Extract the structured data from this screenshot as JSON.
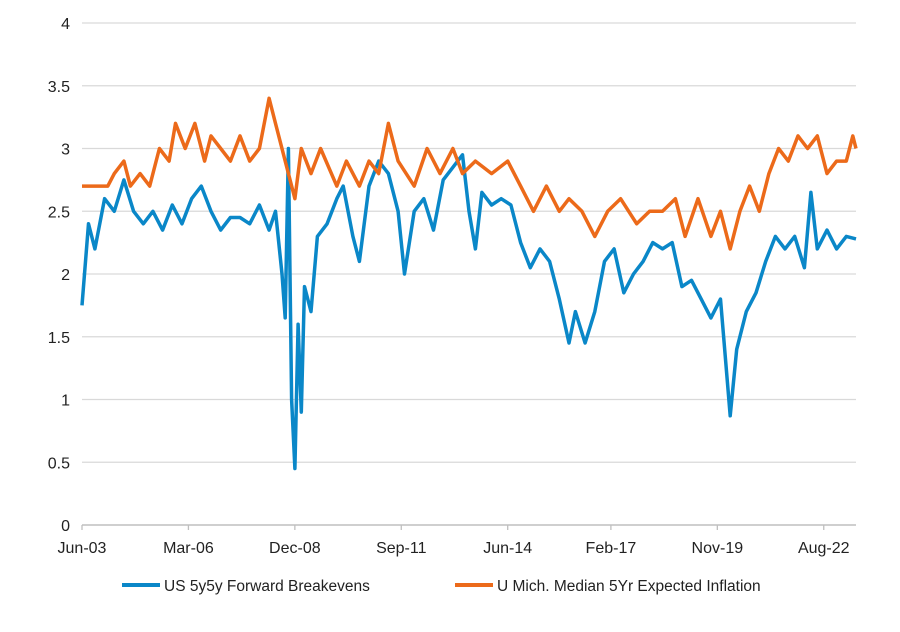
{
  "chart_data": {
    "type": "line",
    "title": "",
    "xlabel": "",
    "ylabel": "",
    "ylim": [
      0,
      4
    ],
    "yticks": [
      "0",
      "0.5",
      "1",
      "1.5",
      "2",
      "2.5",
      "3",
      "3.5",
      "4"
    ],
    "xlim": [
      "2003-06",
      "2023-06"
    ],
    "xticks": [
      {
        "label": "Jun-03",
        "date": "2003-06"
      },
      {
        "label": "Mar-06",
        "date": "2006-03"
      },
      {
        "label": "Dec-08",
        "date": "2008-12"
      },
      {
        "label": "Sep-11",
        "date": "2011-09"
      },
      {
        "label": "Jun-14",
        "date": "2014-06"
      },
      {
        "label": "Feb-17",
        "date": "2017-02"
      },
      {
        "label": "Nov-19",
        "date": "2019-11"
      },
      {
        "label": "Aug-22",
        "date": "2022-08"
      }
    ],
    "grid": true,
    "legend_placement": "bottom",
    "series": [
      {
        "name": "US 5y5y Forward Breakevens",
        "color": "#0a87c8",
        "points": [
          [
            "2003-06",
            1.75
          ],
          [
            "2003-08",
            2.4
          ],
          [
            "2003-10",
            2.2
          ],
          [
            "2004-01",
            2.6
          ],
          [
            "2004-04",
            2.5
          ],
          [
            "2004-07",
            2.75
          ],
          [
            "2004-10",
            2.5
          ],
          [
            "2005-01",
            2.4
          ],
          [
            "2005-04",
            2.5
          ],
          [
            "2005-07",
            2.35
          ],
          [
            "2005-10",
            2.55
          ],
          [
            "2006-01",
            2.4
          ],
          [
            "2006-04",
            2.6
          ],
          [
            "2006-07",
            2.7
          ],
          [
            "2006-10",
            2.5
          ],
          [
            "2007-01",
            2.35
          ],
          [
            "2007-04",
            2.45
          ],
          [
            "2007-07",
            2.45
          ],
          [
            "2007-10",
            2.4
          ],
          [
            "2008-01",
            2.55
          ],
          [
            "2008-04",
            2.35
          ],
          [
            "2008-06",
            2.5
          ],
          [
            "2008-08",
            2.0
          ],
          [
            "2008-09",
            1.65
          ],
          [
            "2008-10",
            3.0
          ],
          [
            "2008-11",
            1.0
          ],
          [
            "2008-12",
            0.45
          ],
          [
            "2009-01",
            1.6
          ],
          [
            "2009-02",
            0.9
          ],
          [
            "2009-03",
            1.9
          ],
          [
            "2009-05",
            1.7
          ],
          [
            "2009-07",
            2.3
          ],
          [
            "2009-10",
            2.4
          ],
          [
            "2010-01",
            2.6
          ],
          [
            "2010-03",
            2.7
          ],
          [
            "2010-06",
            2.3
          ],
          [
            "2010-08",
            2.1
          ],
          [
            "2010-11",
            2.7
          ],
          [
            "2011-02",
            2.9
          ],
          [
            "2011-05",
            2.8
          ],
          [
            "2011-08",
            2.5
          ],
          [
            "2011-10",
            2.0
          ],
          [
            "2012-01",
            2.5
          ],
          [
            "2012-04",
            2.6
          ],
          [
            "2012-07",
            2.35
          ],
          [
            "2012-10",
            2.75
          ],
          [
            "2013-01",
            2.85
          ],
          [
            "2013-04",
            2.95
          ],
          [
            "2013-06",
            2.5
          ],
          [
            "2013-08",
            2.2
          ],
          [
            "2013-10",
            2.65
          ],
          [
            "2014-01",
            2.55
          ],
          [
            "2014-04",
            2.6
          ],
          [
            "2014-07",
            2.55
          ],
          [
            "2014-10",
            2.25
          ],
          [
            "2015-01",
            2.05
          ],
          [
            "2015-04",
            2.2
          ],
          [
            "2015-07",
            2.1
          ],
          [
            "2015-10",
            1.8
          ],
          [
            "2016-01",
            1.45
          ],
          [
            "2016-03",
            1.7
          ],
          [
            "2016-06",
            1.45
          ],
          [
            "2016-09",
            1.7
          ],
          [
            "2016-12",
            2.1
          ],
          [
            "2017-03",
            2.2
          ],
          [
            "2017-06",
            1.85
          ],
          [
            "2017-09",
            2.0
          ],
          [
            "2017-12",
            2.1
          ],
          [
            "2018-03",
            2.25
          ],
          [
            "2018-06",
            2.2
          ],
          [
            "2018-09",
            2.25
          ],
          [
            "2018-12",
            1.9
          ],
          [
            "2019-03",
            1.95
          ],
          [
            "2019-06",
            1.8
          ],
          [
            "2019-09",
            1.65
          ],
          [
            "2019-12",
            1.8
          ],
          [
            "2020-03",
            0.87
          ],
          [
            "2020-05",
            1.4
          ],
          [
            "2020-08",
            1.7
          ],
          [
            "2020-11",
            1.85
          ],
          [
            "2021-02",
            2.1
          ],
          [
            "2021-05",
            2.3
          ],
          [
            "2021-08",
            2.2
          ],
          [
            "2021-11",
            2.3
          ],
          [
            "2022-02",
            2.05
          ],
          [
            "2022-04",
            2.65
          ],
          [
            "2022-06",
            2.2
          ],
          [
            "2022-09",
            2.35
          ],
          [
            "2022-12",
            2.2
          ],
          [
            "2023-03",
            2.3
          ],
          [
            "2023-06",
            2.28
          ]
        ]
      },
      {
        "name": "U Mich. Median 5Yr Expected Inflation",
        "color": "#ec6a1a",
        "points": [
          [
            "2003-06",
            2.7
          ],
          [
            "2004-02",
            2.7
          ],
          [
            "2004-04",
            2.8
          ],
          [
            "2004-07",
            2.9
          ],
          [
            "2004-09",
            2.7
          ],
          [
            "2004-12",
            2.8
          ],
          [
            "2005-03",
            2.7
          ],
          [
            "2005-06",
            3.0
          ],
          [
            "2005-09",
            2.9
          ],
          [
            "2005-11",
            3.2
          ],
          [
            "2006-02",
            3.0
          ],
          [
            "2006-05",
            3.2
          ],
          [
            "2006-08",
            2.9
          ],
          [
            "2006-10",
            3.1
          ],
          [
            "2007-01",
            3.0
          ],
          [
            "2007-04",
            2.9
          ],
          [
            "2007-07",
            3.1
          ],
          [
            "2007-10",
            2.9
          ],
          [
            "2008-01",
            3.0
          ],
          [
            "2008-04",
            3.4
          ],
          [
            "2008-06",
            3.2
          ],
          [
            "2008-09",
            2.9
          ],
          [
            "2008-12",
            2.6
          ],
          [
            "2009-02",
            3.0
          ],
          [
            "2009-05",
            2.8
          ],
          [
            "2009-08",
            3.0
          ],
          [
            "2010-01",
            2.7
          ],
          [
            "2010-04",
            2.9
          ],
          [
            "2010-08",
            2.7
          ],
          [
            "2010-11",
            2.9
          ],
          [
            "2011-02",
            2.8
          ],
          [
            "2011-05",
            3.2
          ],
          [
            "2011-08",
            2.9
          ],
          [
            "2012-01",
            2.7
          ],
          [
            "2012-05",
            3.0
          ],
          [
            "2012-09",
            2.8
          ],
          [
            "2013-01",
            3.0
          ],
          [
            "2013-04",
            2.8
          ],
          [
            "2013-08",
            2.9
          ],
          [
            "2014-01",
            2.8
          ],
          [
            "2014-06",
            2.9
          ],
          [
            "2014-10",
            2.7
          ],
          [
            "2015-02",
            2.5
          ],
          [
            "2015-06",
            2.7
          ],
          [
            "2015-10",
            2.5
          ],
          [
            "2016-01",
            2.6
          ],
          [
            "2016-05",
            2.5
          ],
          [
            "2016-09",
            2.3
          ],
          [
            "2017-01",
            2.5
          ],
          [
            "2017-05",
            2.6
          ],
          [
            "2017-10",
            2.4
          ],
          [
            "2018-02",
            2.5
          ],
          [
            "2018-06",
            2.5
          ],
          [
            "2018-10",
            2.6
          ],
          [
            "2019-01",
            2.3
          ],
          [
            "2019-05",
            2.6
          ],
          [
            "2019-09",
            2.3
          ],
          [
            "2019-12",
            2.5
          ],
          [
            "2020-03",
            2.2
          ],
          [
            "2020-06",
            2.5
          ],
          [
            "2020-09",
            2.7
          ],
          [
            "2020-12",
            2.5
          ],
          [
            "2021-03",
            2.8
          ],
          [
            "2021-06",
            3.0
          ],
          [
            "2021-09",
            2.9
          ],
          [
            "2021-12",
            3.1
          ],
          [
            "2022-03",
            3.0
          ],
          [
            "2022-06",
            3.1
          ],
          [
            "2022-09",
            2.8
          ],
          [
            "2022-12",
            2.9
          ],
          [
            "2023-03",
            2.9
          ],
          [
            "2023-05",
            3.1
          ],
          [
            "2023-06",
            3.0
          ]
        ]
      }
    ]
  }
}
